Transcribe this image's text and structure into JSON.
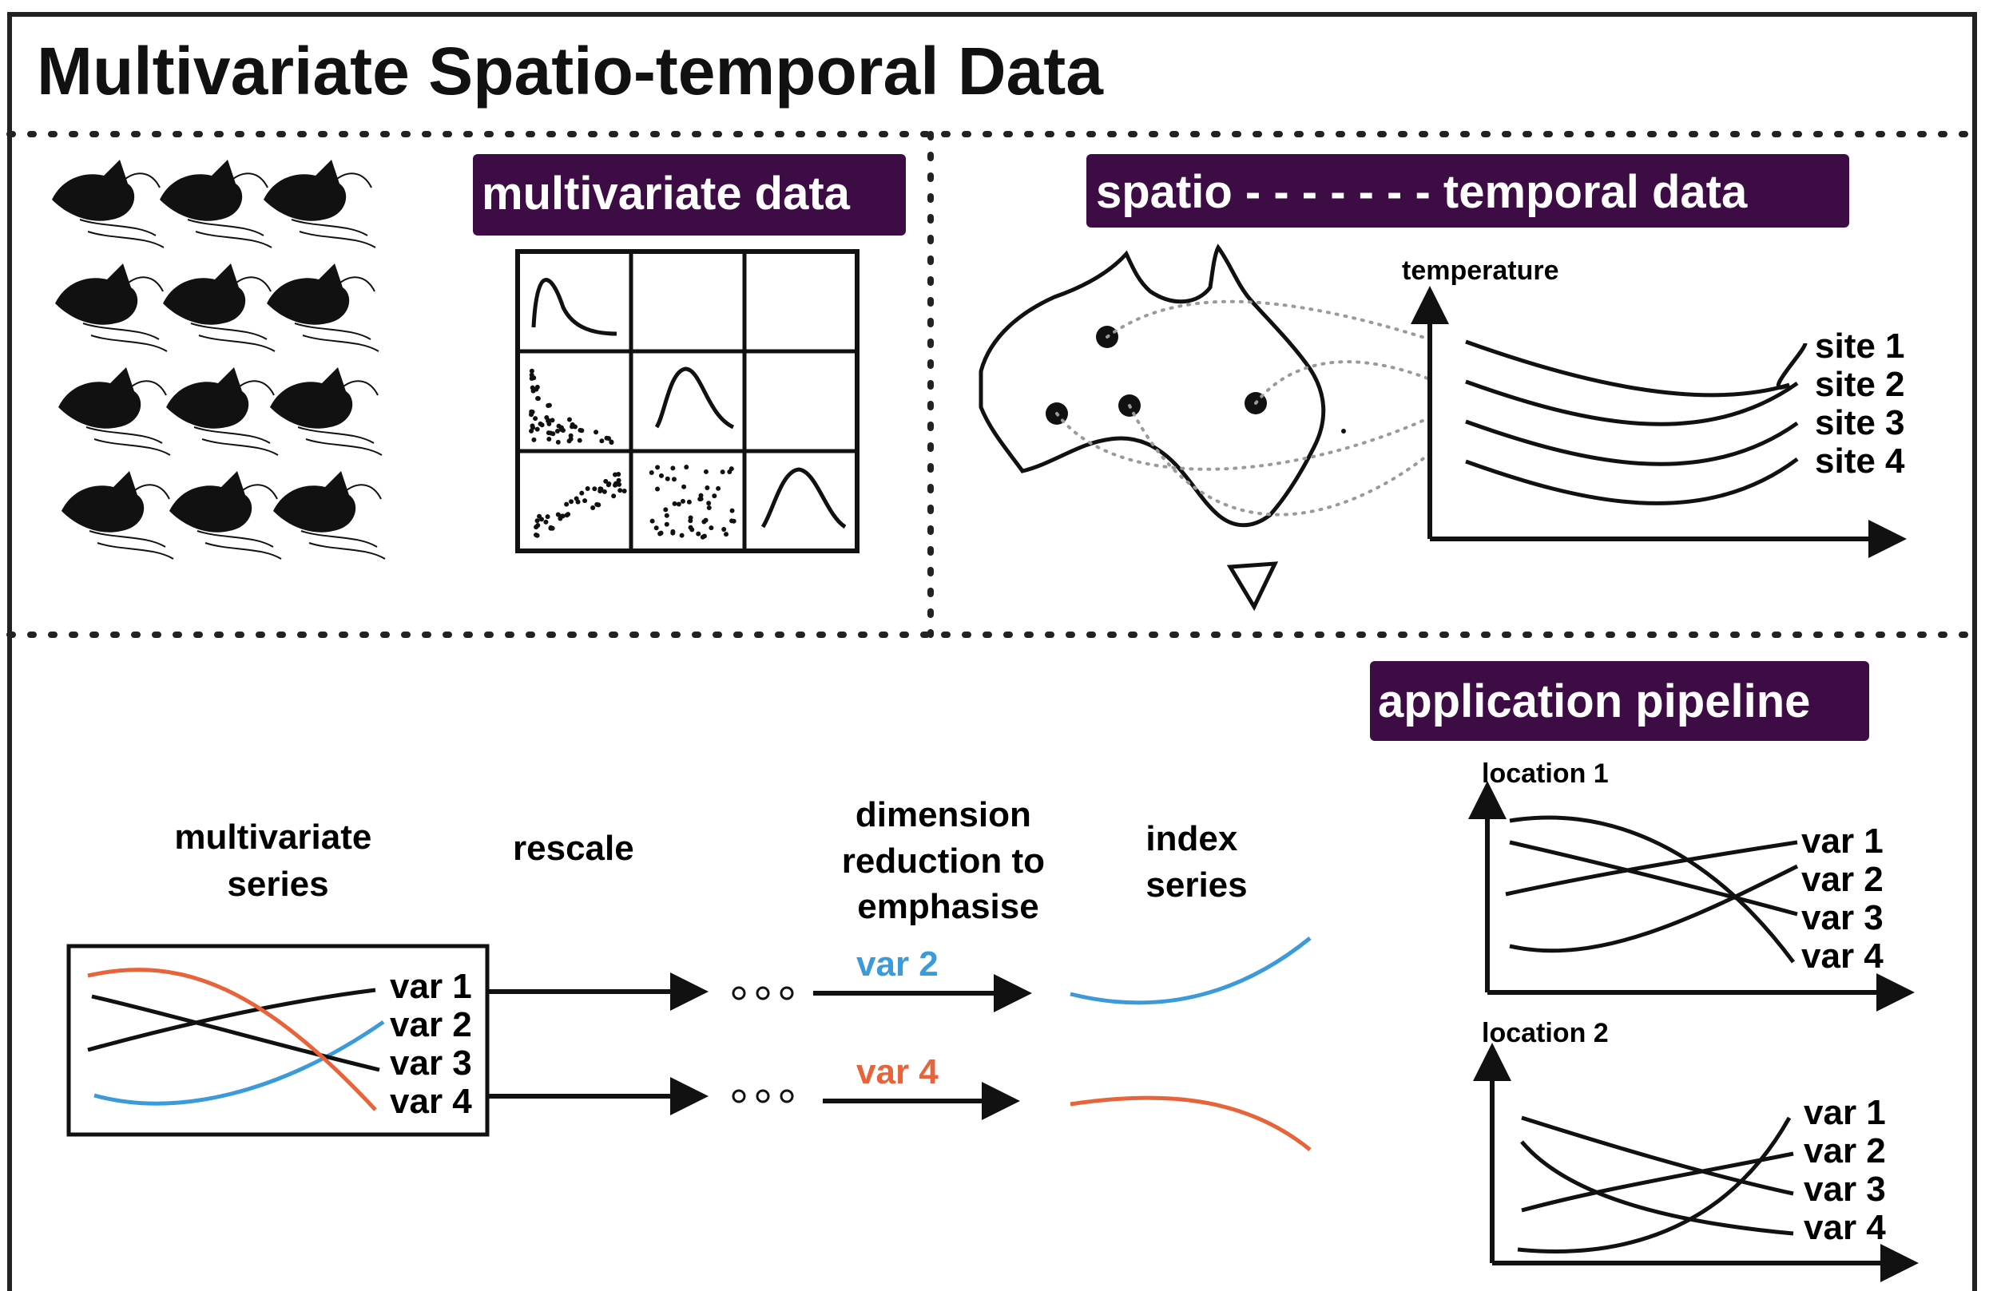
{
  "title": "Multivariate Spatio-temporal Data",
  "colors": {
    "tag_bg": "#3d0c45",
    "blue": "#3b9ad9",
    "orange": "#e8623a",
    "ink": "#111111",
    "dots": "#9a9a9a"
  },
  "panels": {
    "multivariate": {
      "tag": "multivariate data",
      "images": "hand-shadow-puppet-icon grid",
      "scatter_matrix": "3x3 scatterplot matrix"
    },
    "spatiotemporal": {
      "tag": "spatio - - - - - - - temporal data",
      "y_label": "temperature",
      "sites": [
        "site 1",
        "site 2",
        "site 3",
        "site 4"
      ]
    },
    "pipeline": {
      "tag": "application pipeline",
      "headers": {
        "series": "multivariate\nseries",
        "rescale": "rescale",
        "reduce": "dimension\nreduction to\nemphasise",
        "index": "index\nseries"
      },
      "vars": [
        "var 1",
        "var 2",
        "var 3",
        "var 4"
      ],
      "emph_top": "var 2",
      "emph_bottom": "var 4",
      "location1": "location 1",
      "location2": "location 2",
      "loc_vars": [
        "var 1",
        "var 2",
        "var 3",
        "var 4"
      ]
    }
  }
}
